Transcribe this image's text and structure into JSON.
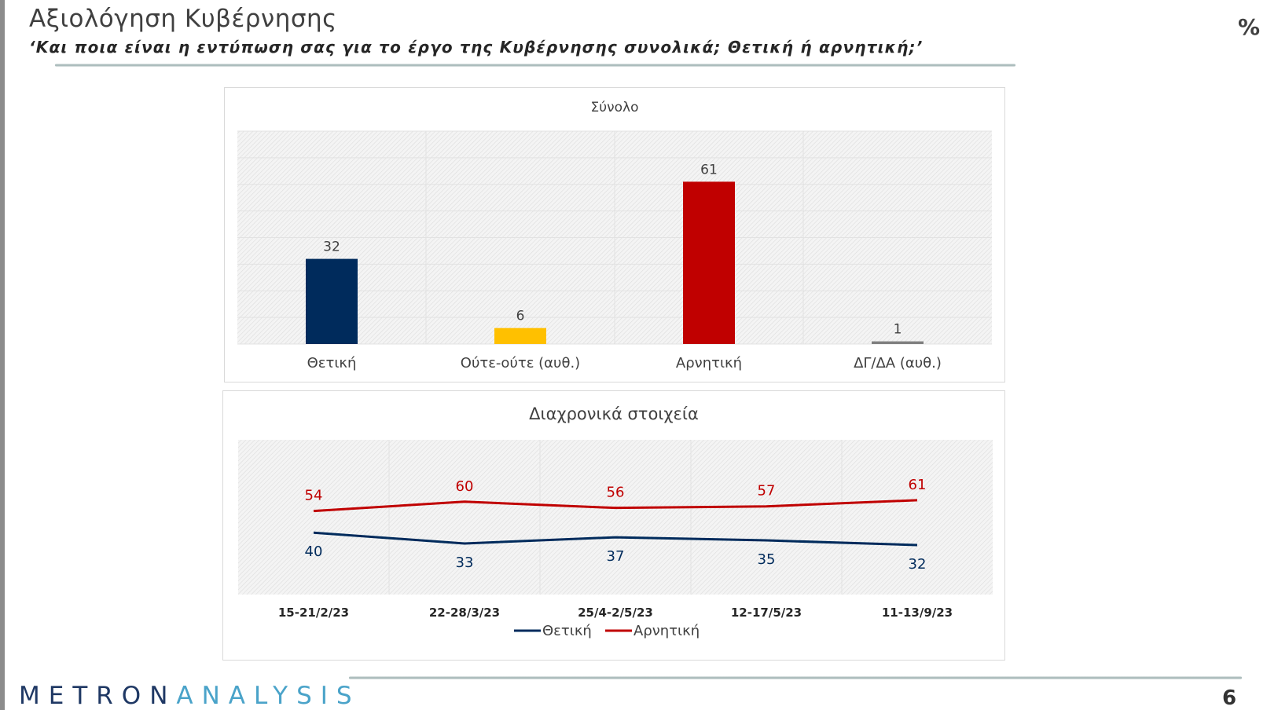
{
  "header": {
    "title": "Αξιολόγηση Κυβέρνησης",
    "subtitle": "‘Και ποια είναι η εντύπωση σας για το έργο της Κυβέρνησης συνολικά; Θετική ή αρνητική;’",
    "unit": "%"
  },
  "footer": {
    "logo_part1": "METRON",
    "logo_part2": "ANALYSIS",
    "page_number": "6"
  },
  "colors": {
    "navy": "#002b5c",
    "yellow": "#ffc000",
    "red": "#c00000",
    "gray": "#7f7f7f"
  },
  "chart_data": [
    {
      "type": "bar",
      "title": "Σύνολο",
      "categories": [
        "Θετική",
        "Ούτε-ούτε (αυθ.)",
        "Αρνητική",
        "ΔΓ/ΔΑ (αυθ.)"
      ],
      "values": [
        32,
        6,
        61,
        1
      ],
      "bar_colors": [
        "#002b5c",
        "#ffc000",
        "#c00000",
        "#7f7f7f"
      ],
      "ylim": [
        0,
        80
      ],
      "grid": true,
      "legend": "none"
    },
    {
      "type": "line",
      "title": "Διαχρονικά στοιχεία",
      "categories": [
        "15-21/2/23",
        "22-28/3/23",
        "25/4-2/5/23",
        "12-17/5/23",
        "11-13/9/23"
      ],
      "series": [
        {
          "name": "Θετική",
          "values": [
            40,
            33,
            37,
            35,
            32
          ],
          "color": "#002b5c"
        },
        {
          "name": "Αρνητική",
          "values": [
            54,
            60,
            56,
            57,
            61
          ],
          "color": "#c00000"
        }
      ],
      "ylim": [
        0,
        100
      ],
      "grid": true,
      "legend": "bottom-center"
    }
  ]
}
